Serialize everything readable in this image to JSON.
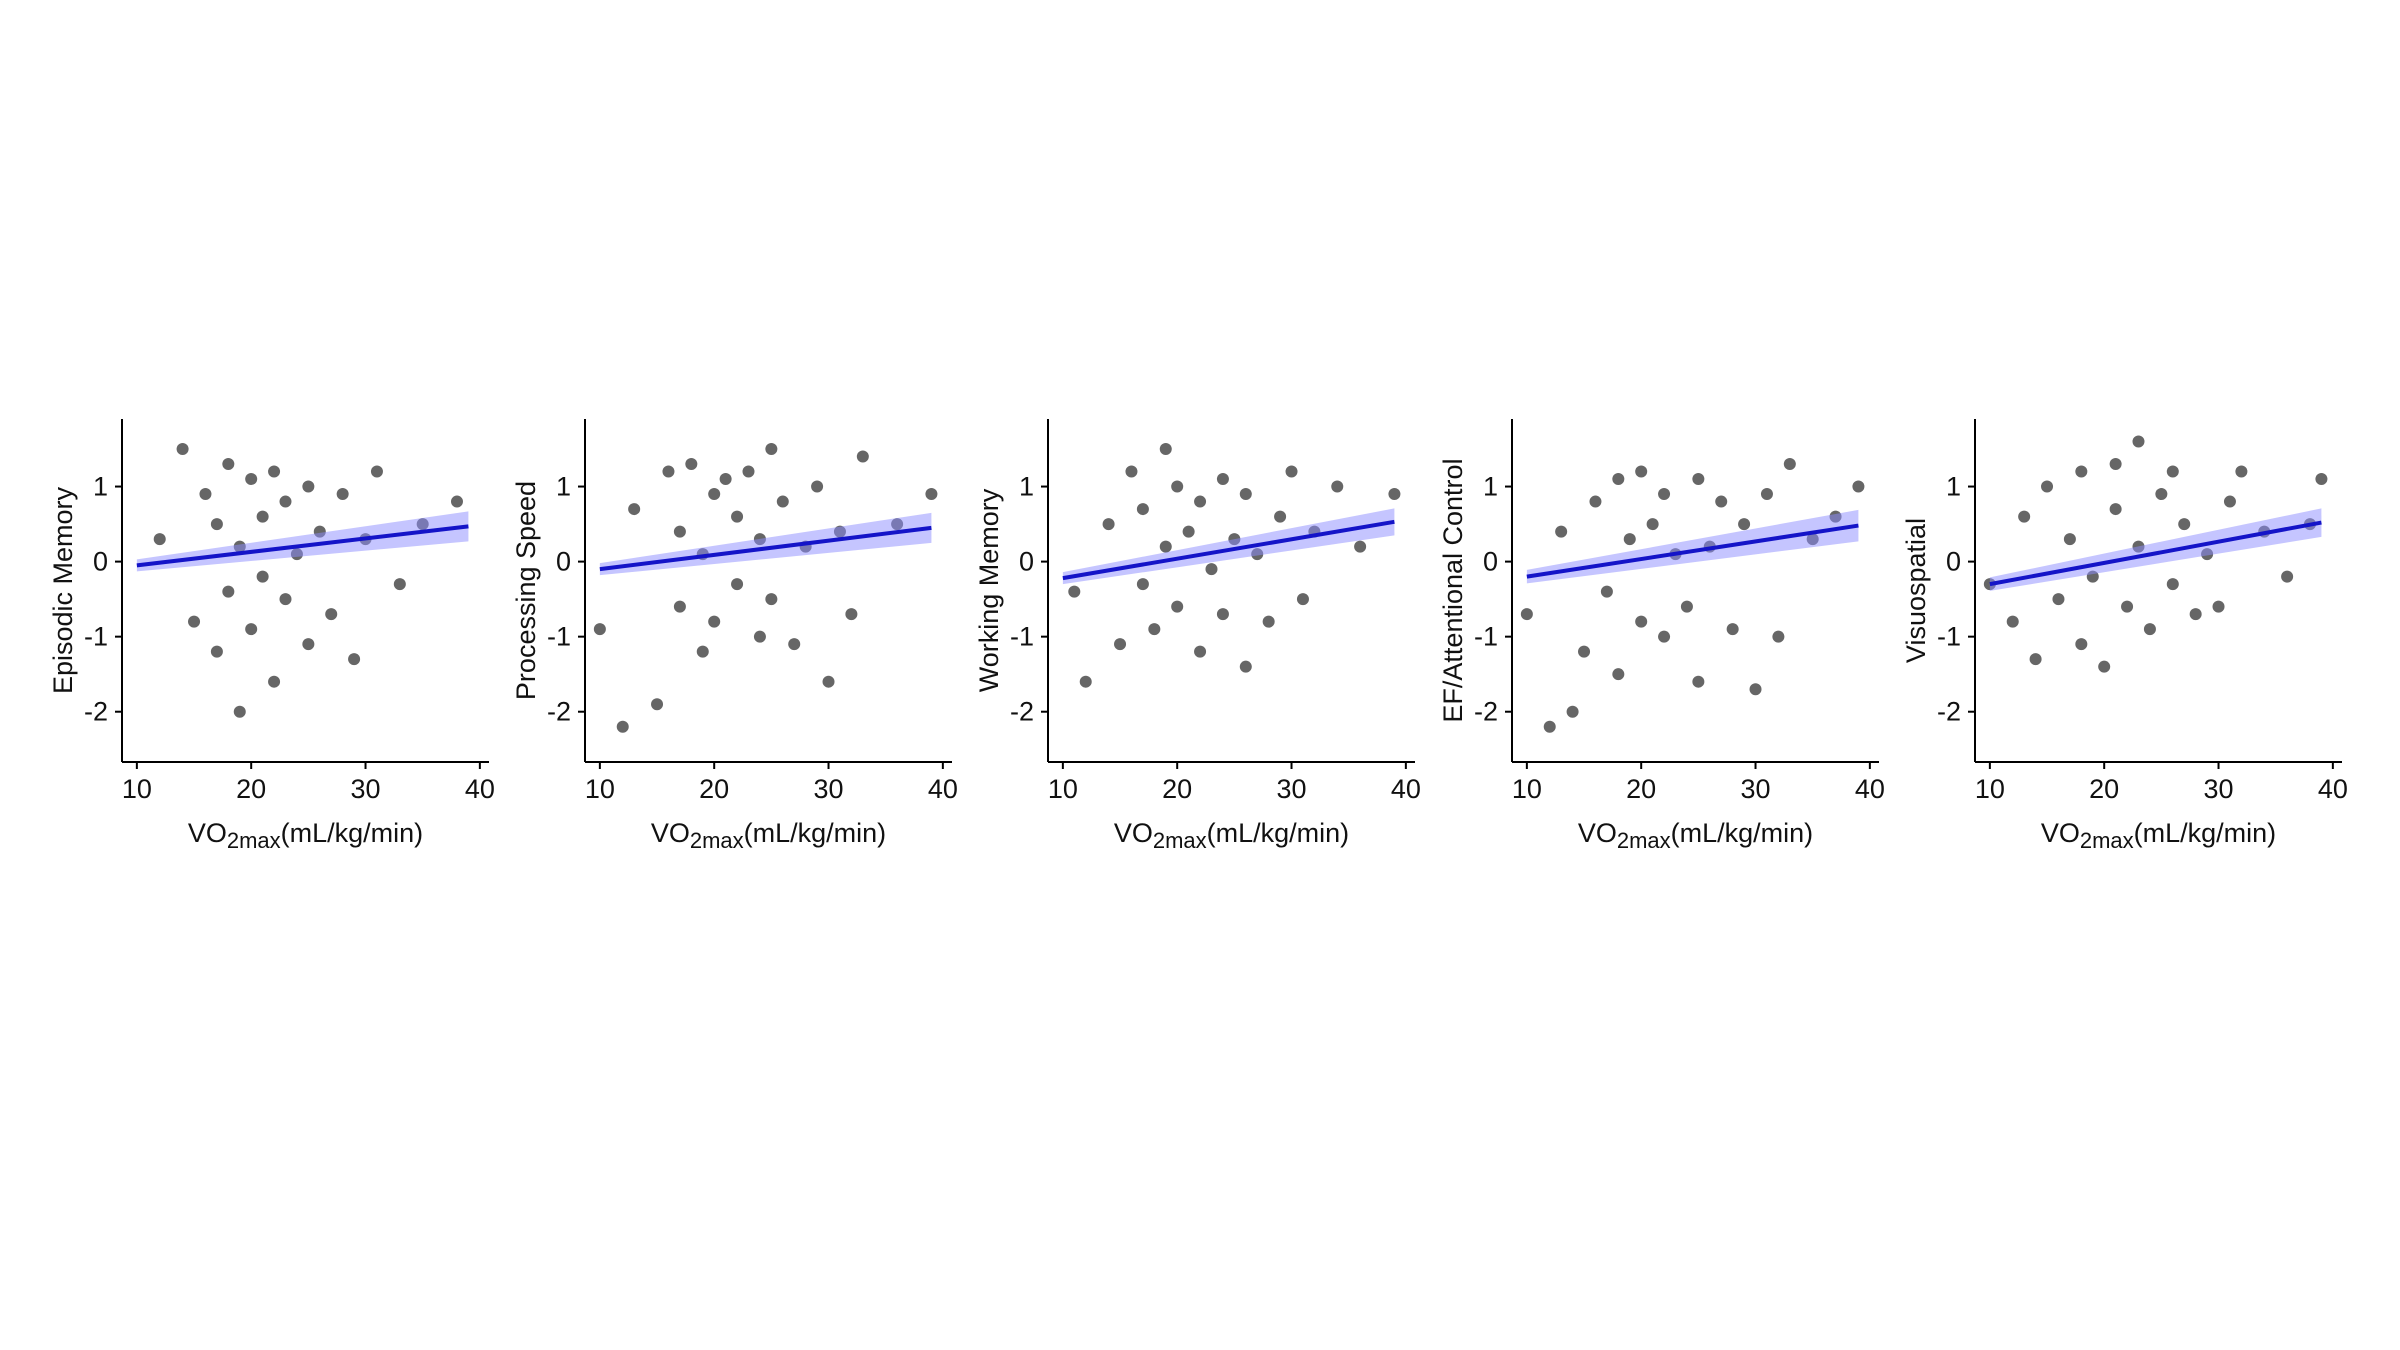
{
  "chart_data": [
    {
      "type": "scatter",
      "y_label": "Episodic Memory",
      "x_label": {
        "main": "VO",
        "sub": "2max",
        "unit": "(mL/kg/min)"
      },
      "xlim": [
        8.7,
        40.8
      ],
      "ylim": [
        -2.67,
        1.9
      ],
      "xticks": [
        10,
        20,
        30,
        40
      ],
      "yticks": [
        -2,
        -1,
        0,
        1
      ],
      "grid": false,
      "series": [
        {
          "color": "#333333",
          "x": [
            12,
            14,
            15,
            16,
            17,
            17,
            18,
            18,
            19,
            19,
            20,
            20,
            21,
            21,
            22,
            22,
            23,
            23,
            24,
            25,
            25,
            26,
            27,
            28,
            29,
            30,
            31,
            33,
            35,
            38
          ],
          "y": [
            0.3,
            1.5,
            -0.8,
            0.9,
            -1.2,
            0.5,
            1.3,
            -0.4,
            -2.0,
            0.2,
            1.1,
            -0.9,
            0.6,
            -0.2,
            1.2,
            -1.6,
            0.8,
            -0.5,
            0.1,
            1.0,
            -1.1,
            0.4,
            -0.7,
            0.9,
            -1.3,
            0.3,
            1.2,
            -0.3,
            0.5,
            0.8
          ]
        }
      ],
      "fit": {
        "x": [
          10,
          39
        ],
        "y": [
          -0.05,
          0.47
        ],
        "lower": [
          -0.13,
          0.27
        ],
        "upper": [
          0.03,
          0.67
        ],
        "color": "#1414c8",
        "band_color": "#8c8cff"
      }
    },
    {
      "type": "scatter",
      "y_label": "Processing Speed",
      "x_label": {
        "main": "VO",
        "sub": "2max",
        "unit": "(mL/kg/min)"
      },
      "xlim": [
        8.7,
        40.8
      ],
      "ylim": [
        -2.67,
        1.9
      ],
      "xticks": [
        10,
        20,
        30,
        40
      ],
      "yticks": [
        -2,
        -1,
        0,
        1
      ],
      "grid": false,
      "series": [
        {
          "color": "#333333",
          "x": [
            10,
            12,
            13,
            15,
            16,
            17,
            17,
            18,
            19,
            19,
            20,
            20,
            21,
            22,
            22,
            23,
            24,
            24,
            25,
            25,
            26,
            27,
            28,
            29,
            30,
            31,
            32,
            33,
            36,
            39
          ],
          "y": [
            -0.9,
            -2.2,
            0.7,
            -1.9,
            1.2,
            -0.6,
            0.4,
            1.3,
            -1.2,
            0.1,
            0.9,
            -0.8,
            1.1,
            -0.3,
            0.6,
            1.2,
            -1.0,
            0.3,
            1.5,
            -0.5,
            0.8,
            -1.1,
            0.2,
            1.0,
            -1.6,
            0.4,
            -0.7,
            1.4,
            0.5,
            0.9
          ]
        }
      ],
      "fit": {
        "x": [
          10,
          39
        ],
        "y": [
          -0.1,
          0.45
        ],
        "lower": [
          -0.18,
          0.25
        ],
        "upper": [
          -0.02,
          0.65
        ],
        "color": "#1414c8",
        "band_color": "#8c8cff"
      }
    },
    {
      "type": "scatter",
      "y_label": "Working Memory",
      "x_label": {
        "main": "VO",
        "sub": "2max",
        "unit": "(mL/kg/min)"
      },
      "xlim": [
        8.7,
        40.8
      ],
      "ylim": [
        -2.67,
        1.9
      ],
      "xticks": [
        10,
        20,
        30,
        40
      ],
      "yticks": [
        -2,
        -1,
        0,
        1
      ],
      "grid": false,
      "series": [
        {
          "color": "#333333",
          "x": [
            11,
            12,
            14,
            15,
            16,
            17,
            17,
            18,
            19,
            19,
            20,
            20,
            21,
            22,
            22,
            23,
            24,
            24,
            25,
            26,
            26,
            27,
            28,
            29,
            30,
            31,
            32,
            34,
            36,
            39
          ],
          "y": [
            -0.4,
            -1.6,
            0.5,
            -1.1,
            1.2,
            -0.3,
            0.7,
            -0.9,
            1.5,
            0.2,
            -0.6,
            1.0,
            0.4,
            -1.2,
            0.8,
            -0.1,
            1.1,
            -0.7,
            0.3,
            -1.4,
            0.9,
            0.1,
            -0.8,
            0.6,
            1.2,
            -0.5,
            0.4,
            1.0,
            0.2,
            0.9
          ]
        }
      ],
      "fit": {
        "x": [
          10,
          39
        ],
        "y": [
          -0.22,
          0.53
        ],
        "lower": [
          -0.3,
          0.35
        ],
        "upper": [
          -0.14,
          0.71
        ],
        "color": "#1414c8",
        "band_color": "#8c8cff"
      }
    },
    {
      "type": "scatter",
      "y_label": "EF/Attentional Control",
      "x_label": {
        "main": "VO",
        "sub": "2max",
        "unit": "(mL/kg/min)"
      },
      "xlim": [
        8.7,
        40.8
      ],
      "ylim": [
        -2.67,
        1.9
      ],
      "xticks": [
        10,
        20,
        30,
        40
      ],
      "yticks": [
        -2,
        -1,
        0,
        1
      ],
      "grid": false,
      "series": [
        {
          "color": "#333333",
          "x": [
            10,
            12,
            13,
            14,
            15,
            16,
            17,
            18,
            18,
            19,
            20,
            20,
            21,
            22,
            22,
            23,
            24,
            25,
            25,
            26,
            27,
            28,
            29,
            30,
            31,
            32,
            33,
            35,
            37,
            39
          ],
          "y": [
            -0.7,
            -2.2,
            0.4,
            -2.0,
            -1.2,
            0.8,
            -0.4,
            1.1,
            -1.5,
            0.3,
            1.2,
            -0.8,
            0.5,
            -1.0,
            0.9,
            0.1,
            -0.6,
            1.1,
            -1.6,
            0.2,
            0.8,
            -0.9,
            0.5,
            -1.7,
            0.9,
            -1.0,
            1.3,
            0.3,
            0.6,
            1.0
          ]
        }
      ],
      "fit": {
        "x": [
          10,
          39
        ],
        "y": [
          -0.2,
          0.48
        ],
        "lower": [
          -0.29,
          0.27
        ],
        "upper": [
          -0.11,
          0.69
        ],
        "color": "#1414c8",
        "band_color": "#8c8cff"
      }
    },
    {
      "type": "scatter",
      "y_label": "Visuospatial",
      "x_label": {
        "main": "VO",
        "sub": "2max",
        "unit": "(mL/kg/min)"
      },
      "xlim": [
        8.7,
        40.8
      ],
      "ylim": [
        -2.67,
        1.9
      ],
      "xticks": [
        10,
        20,
        30,
        40
      ],
      "yticks": [
        -2,
        -1,
        0,
        1
      ],
      "grid": false,
      "series": [
        {
          "color": "#333333",
          "x": [
            10,
            12,
            13,
            14,
            15,
            16,
            17,
            18,
            18,
            19,
            20,
            21,
            21,
            22,
            23,
            23,
            24,
            25,
            26,
            26,
            27,
            28,
            29,
            30,
            31,
            32,
            34,
            36,
            38,
            39
          ],
          "y": [
            -0.3,
            -0.8,
            0.6,
            -1.3,
            1.0,
            -0.5,
            0.3,
            -1.1,
            1.2,
            -0.2,
            -1.4,
            0.7,
            1.3,
            -0.6,
            1.6,
            0.2,
            -0.9,
            0.9,
            -0.3,
            1.2,
            0.5,
            -0.7,
            0.1,
            -0.6,
            0.8,
            1.2,
            0.4,
            -0.2,
            0.5,
            1.1
          ]
        }
      ],
      "fit": {
        "x": [
          10,
          39
        ],
        "y": [
          -0.3,
          0.52
        ],
        "lower": [
          -0.39,
          0.33
        ],
        "upper": [
          -0.21,
          0.71
        ],
        "color": "#1414c8",
        "band_color": "#8c8cff"
      }
    }
  ]
}
